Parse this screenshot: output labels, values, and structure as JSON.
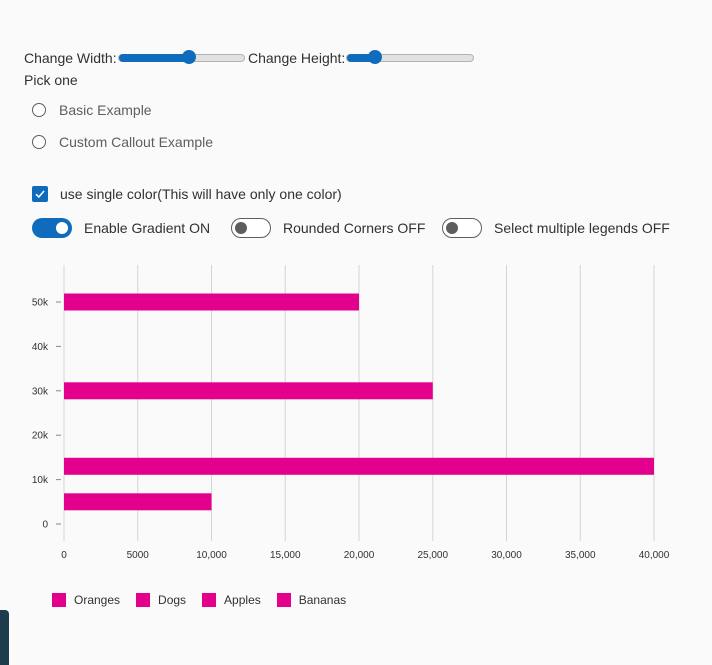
{
  "controls": {
    "width_label": "Change Width:",
    "width_value": 0.55,
    "height_label": "Change Height:",
    "height_value": 0.22,
    "pick_label": "Pick one",
    "radio_options": [
      "Basic Example",
      "Custom Callout Example"
    ],
    "checkbox_label": "use single color(This will have only one color)",
    "checkbox_checked": true,
    "toggles": [
      {
        "label": "Enable Gradient ON",
        "on": true
      },
      {
        "label": "Rounded Corners OFF",
        "on": false
      },
      {
        "label": "Select multiple legends OFF",
        "on": false
      }
    ]
  },
  "colors": {
    "accent": "#0f6cbd",
    "bar": "#e3008c",
    "gridline": "#d4d4d4"
  },
  "chart_data": {
    "type": "bar",
    "orientation": "horizontal",
    "x_ticks": [
      "0",
      "5000",
      "10,000",
      "15,000",
      "20,000",
      "25,000",
      "30,000",
      "35,000",
      "40,000"
    ],
    "y_ticks": [
      "0",
      "10k",
      "20k",
      "30k",
      "40k",
      "50k"
    ],
    "xlim": [
      0,
      40000
    ],
    "ylim": [
      0,
      50000
    ],
    "bars": [
      {
        "y": 5000,
        "x": 10000
      },
      {
        "y": 13000,
        "x": 40000
      },
      {
        "y": 30000,
        "x": 25000
      },
      {
        "y": 50000,
        "x": 20000
      }
    ],
    "legend": [
      "Oranges",
      "Dogs",
      "Apples",
      "Bananas"
    ],
    "grid": true,
    "legend_position": "bottom-left"
  }
}
